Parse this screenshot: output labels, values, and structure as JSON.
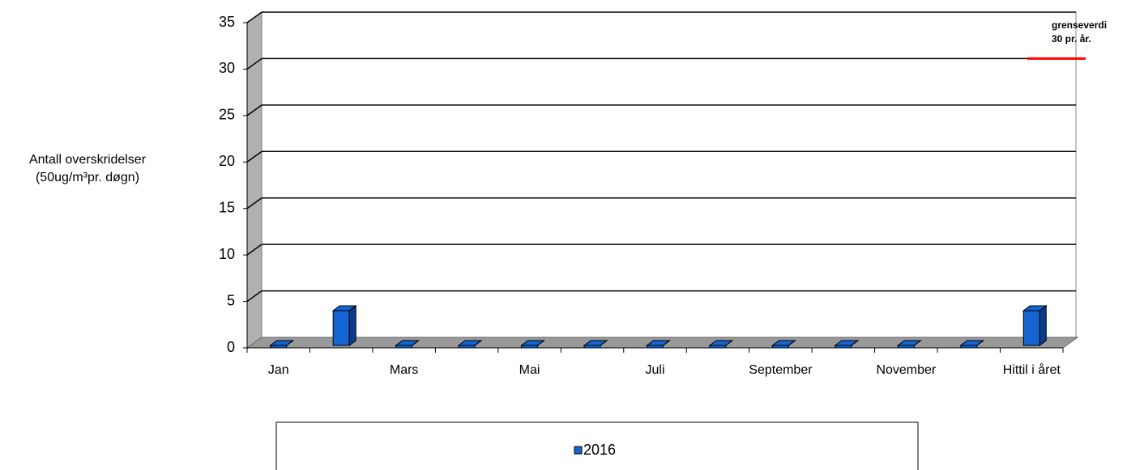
{
  "chart_data": {
    "type": "bar3d",
    "y_label": [
      "Antall overskridelser",
      "(50ug/m³pr. døgn)"
    ],
    "categories": [
      "Jan",
      null,
      "Mars",
      null,
      "Mai",
      null,
      "Juli",
      null,
      "September",
      null,
      "November",
      null,
      "Hittil i året"
    ],
    "series": [
      {
        "name": "2016",
        "color": "#1464d2",
        "values": [
          0,
          4,
          0,
          0,
          0,
          0,
          0,
          0,
          0,
          0,
          0,
          0,
          4
        ]
      }
    ],
    "ylim": [
      0,
      35
    ],
    "yticks": [
      0,
      5,
      10,
      15,
      20,
      25,
      30,
      35
    ],
    "grid": true,
    "threshold": {
      "value": 30,
      "color": "#ff0000",
      "label": [
        "grenseverdi",
        "30 pr. år."
      ]
    },
    "legend": "bottom"
  }
}
